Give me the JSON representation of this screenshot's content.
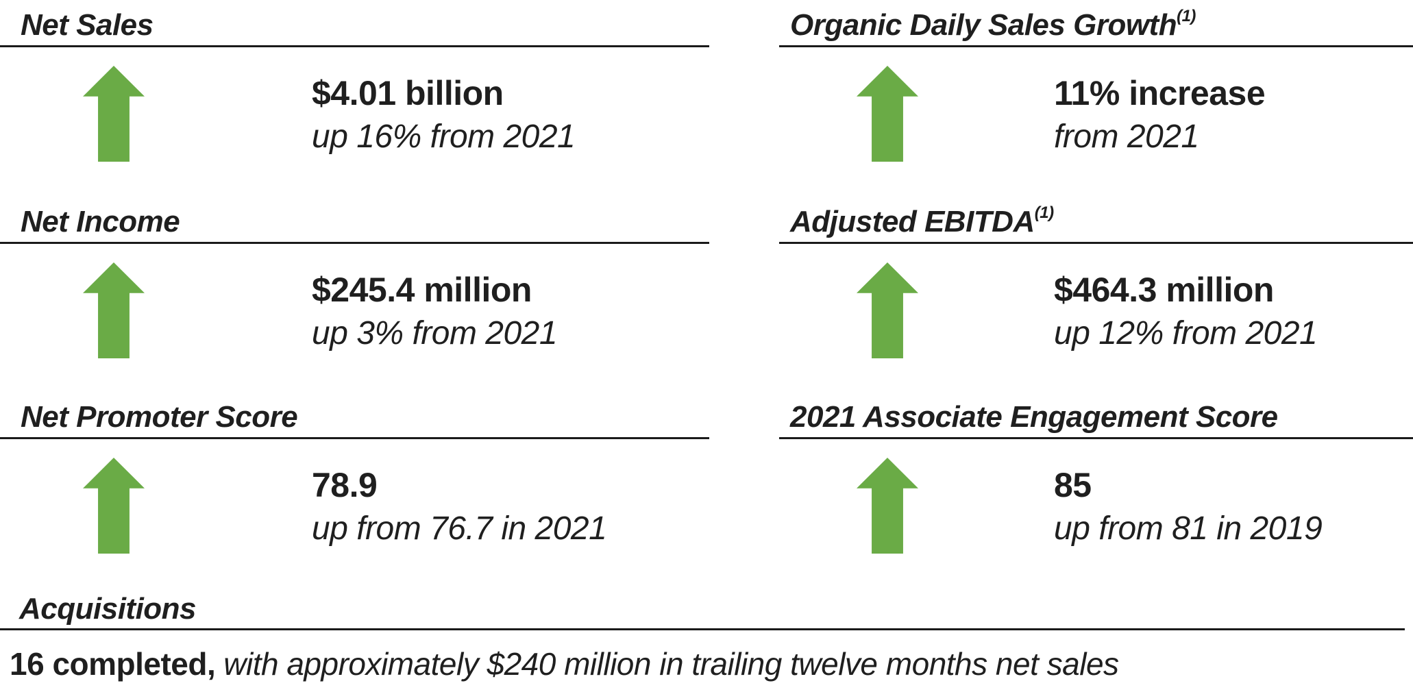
{
  "colors": {
    "arrow_green": "#6aab46",
    "text": "#1f1f1f",
    "rule": "#1a1a1a",
    "background": "#ffffff"
  },
  "icons": {
    "up_arrow": "up-arrow-icon"
  },
  "metrics": [
    {
      "title": "Net Sales",
      "superscript": "",
      "value": "$4.01 billion",
      "change": "up 16% from 2021"
    },
    {
      "title": "Organic Daily Sales Growth",
      "superscript": "(1)",
      "value": "11% increase",
      "change": "from 2021"
    },
    {
      "title": "Net Income",
      "superscript": "",
      "value": "$245.4 million",
      "change": "up 3% from 2021"
    },
    {
      "title": "Adjusted EBITDA",
      "superscript": "(1)",
      "value": "$464.3 million",
      "change": "up 12% from 2021"
    },
    {
      "title": "Net Promoter Score",
      "superscript": "",
      "value": "78.9",
      "change": "up from 76.7 in 2021"
    },
    {
      "title": "2021 Associate Engagement Score",
      "superscript": "",
      "value": "85",
      "change": "up from 81 in 2019"
    }
  ],
  "acquisitions": {
    "title": "Acquisitions",
    "count_text": "16 completed,",
    "detail_text": "with approximately $240 million in trailing twelve months net sales"
  }
}
